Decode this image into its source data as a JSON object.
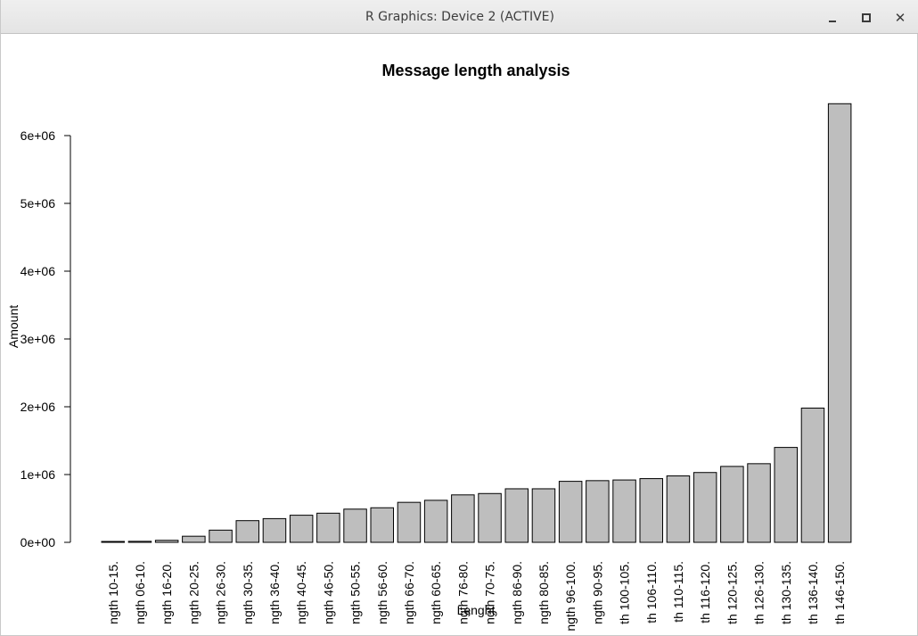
{
  "window": {
    "title": "R Graphics: Device 2 (ACTIVE)",
    "controls": {
      "minimize": "minimize-icon",
      "maximize": "maximize-icon",
      "close": "close-icon"
    }
  },
  "chart_data": {
    "type": "bar",
    "title": "Message length analysis",
    "xlabel": "Lenght",
    "ylabel": "Amount",
    "ylim": [
      0,
      6500000
    ],
    "yticks": [
      0,
      1000000,
      2000000,
      3000000,
      4000000,
      5000000,
      6000000
    ],
    "ytick_labels": [
      "0e+00",
      "1e+06",
      "2e+06",
      "3e+06",
      "4e+06",
      "5e+06",
      "6e+06"
    ],
    "bar_fill": "#bebebe",
    "bar_stroke": "#000000",
    "grid": false,
    "legend": "none",
    "categories": [
      "ngth 10-15.",
      "ngth 06-10.",
      "ngth 16-20.",
      "ngth 20-25.",
      "ngth 26-30.",
      "ngth 30-35.",
      "ngth 36-40.",
      "ngth 40-45.",
      "ngth 46-50.",
      "ngth 50-55.",
      "ngth 56-60.",
      "ngth 66-70.",
      "ngth 60-65.",
      "ngth 76-80.",
      "ngth 70-75.",
      "ngth 86-90.",
      "ngth 80-85.",
      "ngth 96-100.",
      "ngth 90-95.",
      "th 100-105.",
      "th 106-110.",
      "th 110-115.",
      "th 116-120.",
      "th 120-125.",
      "th 126-130.",
      "th 130-135.",
      "th 136-140.",
      "th 146-150."
    ],
    "values": [
      10000,
      15000,
      30000,
      90000,
      180000,
      320000,
      350000,
      400000,
      430000,
      490000,
      510000,
      590000,
      620000,
      700000,
      720000,
      790000,
      790000,
      900000,
      910000,
      920000,
      940000,
      980000,
      1030000,
      1120000,
      1160000,
      1400000,
      1980000,
      6470000
    ]
  }
}
